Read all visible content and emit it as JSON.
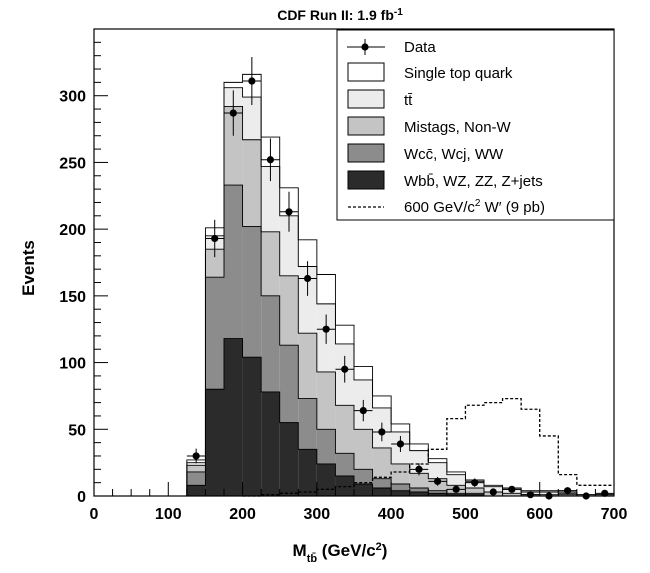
{
  "chart_data": {
    "type": "stacked-histogram",
    "title": "CDF Run II: 1.9 fb",
    "title_superscript": "-1",
    "xlabel": "M",
    "xlabel_subscript": "tb̄",
    "xlabel_unit": " (GeV/c",
    "xlabel_unit_superscript": "2",
    "xlabel_unit_close": ")",
    "ylabel": "Events",
    "xlim": [
      0,
      700
    ],
    "ylim": [
      0,
      350
    ],
    "xticks": [
      "0",
      "100",
      "200",
      "300",
      "400",
      "500",
      "600",
      "700"
    ],
    "xtick_values": [
      0,
      100,
      200,
      300,
      400,
      500,
      600,
      700
    ],
    "yticks": [
      "0",
      "50",
      "100",
      "150",
      "200",
      "250",
      "300"
    ],
    "ytick_values": [
      0,
      50,
      100,
      150,
      200,
      250,
      300
    ],
    "bin_edges": [
      0,
      25,
      50,
      75,
      100,
      125,
      150,
      175,
      200,
      225,
      250,
      275,
      300,
      325,
      350,
      375,
      400,
      425,
      450,
      475,
      500,
      525,
      550,
      575,
      600,
      625,
      650,
      675,
      700
    ],
    "stack": [
      {
        "legend": "Wbb̄, WZ, ZZ, Z+jets",
        "color": "#2b2b2b",
        "values": [
          0,
          0,
          0,
          0,
          0,
          8,
          80,
          118,
          104,
          78,
          55,
          35,
          24,
          15,
          9,
          6,
          4,
          3,
          2,
          1,
          1,
          0,
          0,
          0,
          0,
          0,
          0,
          0
        ]
      },
      {
        "legend": "Wcc̄, Wcj, WW",
        "color": "#8c8c8c",
        "values": [
          0,
          0,
          0,
          0,
          0,
          10,
          84,
          115,
          98,
          72,
          58,
          38,
          26,
          17,
          11,
          7,
          5,
          3,
          2,
          1,
          1,
          0,
          0,
          0,
          0,
          0,
          0,
          0
        ]
      },
      {
        "legend": "Mistags, Non-W",
        "color": "#c4c4c4",
        "values": [
          0,
          0,
          0,
          0,
          0,
          5,
          21,
          59,
          65,
          48,
          52,
          49,
          43,
          36,
          30,
          23,
          15,
          11,
          9,
          6,
          4,
          3,
          2,
          1,
          1,
          1,
          0,
          0
        ]
      },
      {
        "legend": "tt̄",
        "color": "#ececec",
        "values": [
          0,
          0,
          0,
          0,
          0,
          2,
          10,
          14,
          32,
          49,
          45,
          50,
          51,
          46,
          37,
          30,
          24,
          17,
          12,
          8,
          5,
          4,
          3,
          2,
          2,
          1,
          1,
          1
        ]
      },
      {
        "legend": "Single top quark",
        "color": "#ffffff",
        "values": [
          0,
          0,
          0,
          0,
          0,
          2,
          6,
          4,
          17,
          22,
          21,
          20,
          22,
          14,
          10,
          9,
          6,
          5,
          3,
          2,
          1,
          1,
          1,
          1,
          1,
          1,
          0,
          0
        ]
      }
    ],
    "wprime": {
      "legend": "600 GeV/c",
      "legend_superscript": "2",
      "legend_rest": " W′ (9 pb)",
      "values": [
        0,
        0,
        0,
        0,
        0,
        0,
        0,
        0,
        0,
        1,
        2,
        3,
        5,
        7,
        10,
        14,
        18,
        24,
        35,
        58,
        68,
        70,
        73,
        65,
        45,
        16,
        8,
        8
      ]
    },
    "data_points": {
      "legend": "Data",
      "x": [
        137.5,
        162.5,
        187.5,
        212.5,
        237.5,
        262.5,
        287.5,
        312.5,
        337.5,
        362.5,
        387.5,
        412.5,
        437.5,
        462.5,
        487.5,
        512.5,
        537.5,
        562.5,
        587.5,
        612.5,
        637.5,
        662.5,
        687.5
      ],
      "y": [
        30,
        193,
        287,
        311,
        252,
        213,
        163,
        125,
        95,
        64,
        48,
        39,
        20,
        11,
        5,
        10,
        3,
        5,
        1,
        0,
        4,
        0,
        2
      ],
      "err": [
        5.5,
        14,
        17,
        18,
        16,
        15,
        13,
        11,
        10,
        8,
        7,
        6,
        4.5,
        3.3,
        2.2,
        3.2,
        1.7,
        2.2,
        1,
        0,
        2,
        0,
        1.4
      ]
    },
    "legend_position": "top-right",
    "grid": false
  }
}
